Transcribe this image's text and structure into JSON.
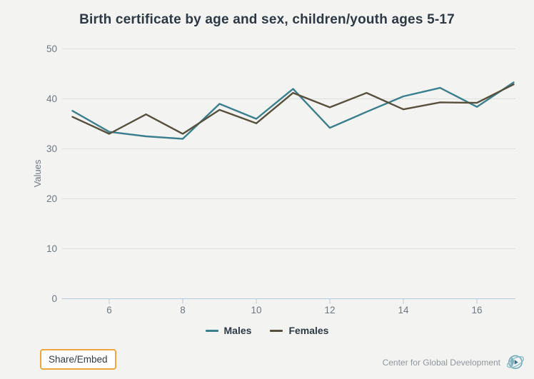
{
  "chart_data": {
    "type": "line",
    "title": "Birth certificate by age and sex, children/youth ages 5-17",
    "xlabel": "",
    "ylabel": "Values",
    "x": [
      5,
      6,
      7,
      8,
      9,
      10,
      11,
      12,
      13,
      14,
      15,
      16,
      17
    ],
    "series": [
      {
        "name": "Males",
        "color": "#3b7f8e",
        "values": [
          37.6,
          33.4,
          32.5,
          32.0,
          39.0,
          36.0,
          42.0,
          34.2,
          37.4,
          40.5,
          42.2,
          38.4,
          43.3
        ]
      },
      {
        "name": "Females",
        "color": "#57503d",
        "values": [
          36.4,
          33.0,
          36.9,
          33.0,
          37.8,
          35.1,
          41.2,
          38.3,
          41.2,
          37.9,
          39.3,
          39.2,
          42.9
        ]
      }
    ],
    "ylim": [
      0,
      50
    ],
    "y_ticks": [
      0,
      10,
      20,
      30,
      40,
      50
    ],
    "x_ticks": [
      6,
      8,
      10,
      12,
      14,
      16
    ],
    "grid": true,
    "legend_position": "bottom"
  },
  "footer": {
    "share_label": "Share/Embed",
    "brand": "Center for Global Development"
  },
  "colors": {
    "background": "#f3f3f1",
    "gridline": "#dfdfdc",
    "axis": "#b6c9db",
    "tick_label": "#6d7882",
    "title_text": "#2d3944",
    "button_border": "#f0a63c",
    "brand_text": "#8e969d"
  }
}
